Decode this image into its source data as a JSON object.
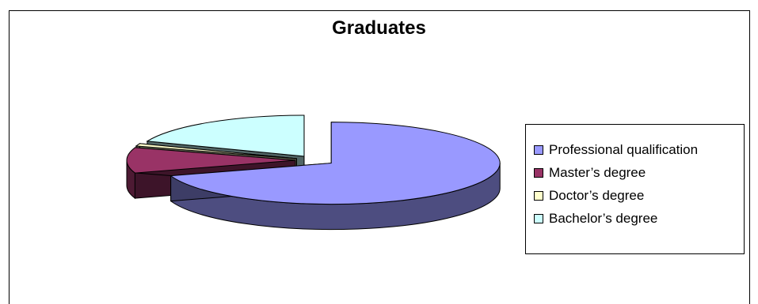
{
  "chart_data": {
    "type": "pie",
    "title": "Graduates",
    "categories": [
      "Professional qualification",
      "Master’s degree",
      "Doctor’s degree",
      "Bachelor’s degree"
    ],
    "values": [
      70,
      10,
      1,
      19
    ],
    "exploded": true,
    "three_d": true,
    "legend_position": "right",
    "colors": [
      "#9999ff",
      "#993366",
      "#ffffcc",
      "#ccffff"
    ]
  }
}
